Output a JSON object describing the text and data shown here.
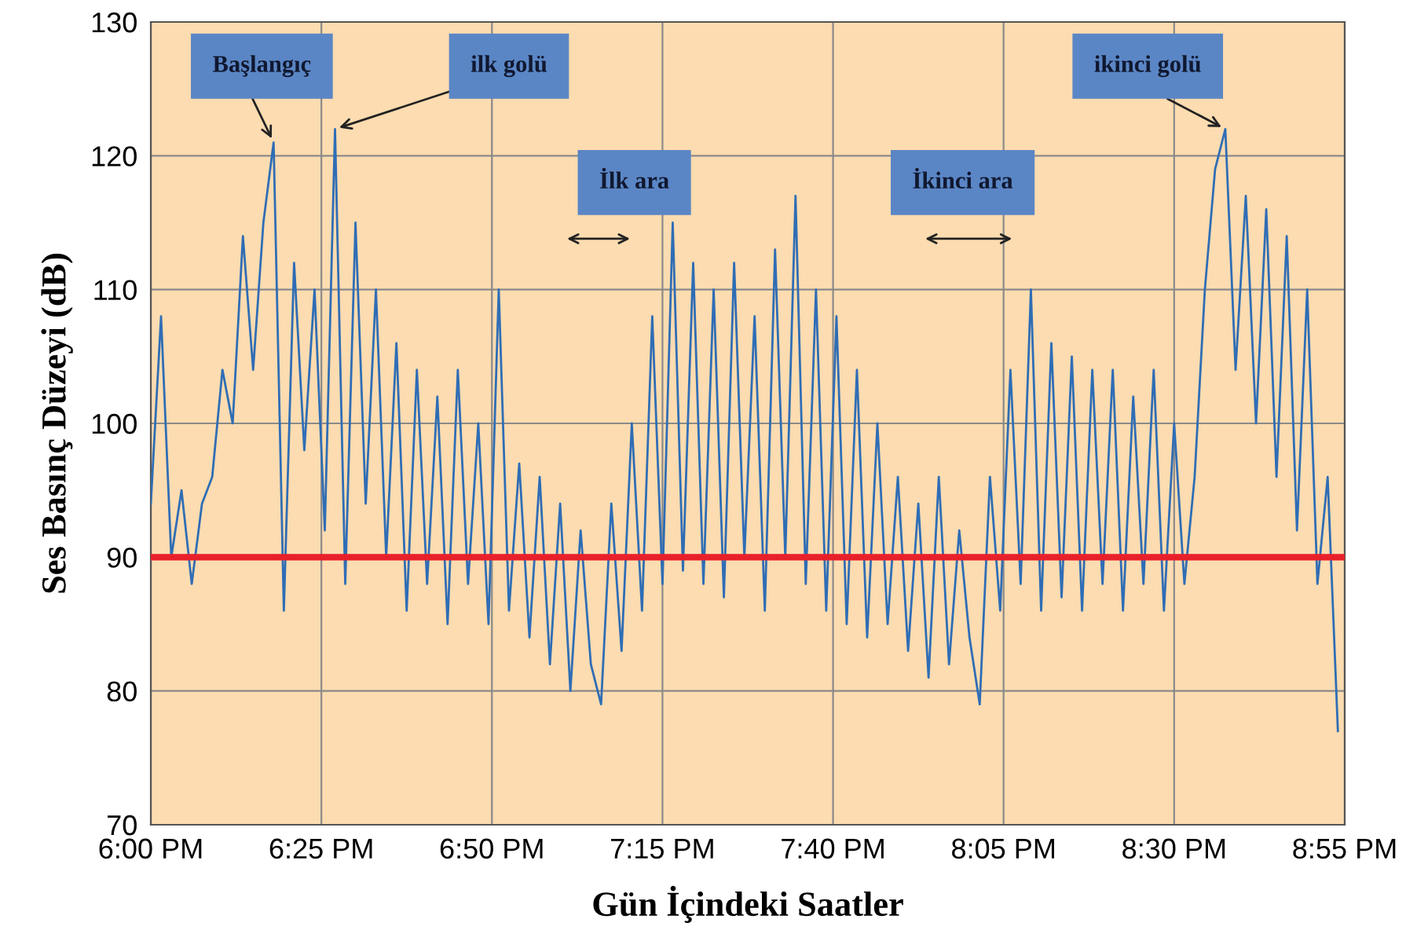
{
  "chart_data": {
    "type": "line",
    "xlabel": "Gün İçindeki Saatler",
    "ylabel": "Ses Basınç Düzeyi (dB)",
    "x": [
      18.0,
      18.025,
      18.05,
      18.075,
      18.1,
      18.125,
      18.15,
      18.175,
      18.2,
      18.225,
      18.25,
      18.275,
      18.3,
      18.325,
      18.35,
      18.375,
      18.4,
      18.425,
      18.45,
      18.475,
      18.5,
      18.525,
      18.55,
      18.575,
      18.6,
      18.625,
      18.65,
      18.675,
      18.7,
      18.725,
      18.75,
      18.775,
      18.8,
      18.825,
      18.85,
      18.875,
      18.9,
      18.925,
      18.95,
      18.975,
      19.0,
      19.025,
      19.05,
      19.075,
      19.1,
      19.125,
      19.15,
      19.175,
      19.2,
      19.225,
      19.25,
      19.275,
      19.3,
      19.325,
      19.35,
      19.375,
      19.4,
      19.425,
      19.45,
      19.475,
      19.5,
      19.525,
      19.55,
      19.575,
      19.6,
      19.625,
      19.65,
      19.675,
      19.7,
      19.725,
      19.75,
      19.775,
      19.8,
      19.825,
      19.85,
      19.875,
      19.9,
      19.925,
      19.95,
      19.975,
      20.0,
      20.025,
      20.05,
      20.075,
      20.1,
      20.125,
      20.15,
      20.175,
      20.2,
      20.225,
      20.25,
      20.275,
      20.3,
      20.325,
      20.35,
      20.375,
      20.4,
      20.425,
      20.45,
      20.475,
      20.5,
      20.525,
      20.55,
      20.575,
      20.6,
      20.625,
      20.65,
      20.675,
      20.7,
      20.725,
      20.75,
      20.775,
      20.8,
      20.825,
      20.85,
      20.875,
      20.9
    ],
    "series": [
      {
        "color": "#2f6db5",
        "values": [
          94,
          108,
          90,
          95,
          88,
          94,
          96,
          104,
          100,
          114,
          104,
          115,
          121,
          86,
          112,
          98,
          110,
          92,
          122,
          88,
          115,
          94,
          110,
          90,
          106,
          86,
          104,
          88,
          102,
          85,
          104,
          88,
          100,
          85,
          110,
          86,
          97,
          84,
          96,
          82,
          94,
          80,
          92,
          82,
          79,
          94,
          83,
          100,
          86,
          108,
          88,
          115,
          89,
          112,
          88,
          110,
          87,
          112,
          90,
          108,
          86,
          113,
          90,
          117,
          88,
          110,
          86,
          108,
          85,
          104,
          84,
          100,
          85,
          96,
          83,
          94,
          81,
          96,
          82,
          92,
          84,
          79,
          96,
          86,
          104,
          88,
          110,
          86,
          106,
          87,
          105,
          86,
          104,
          88,
          104,
          86,
          102,
          88,
          104,
          86,
          100,
          88,
          96,
          110,
          119,
          122,
          104,
          117,
          100,
          116,
          96,
          114,
          92,
          110,
          88,
          96,
          77
        ]
      }
    ],
    "xlim": [
      18.0,
      20.9167
    ],
    "xticks": [
      {
        "value": 18.0,
        "label": "6:00 PM"
      },
      {
        "value": 18.4167,
        "label": "6:25 PM"
      },
      {
        "value": 18.8333,
        "label": "6:50 PM"
      },
      {
        "value": 19.25,
        "label": "7:15 PM"
      },
      {
        "value": 19.6667,
        "label": "7:40 PM"
      },
      {
        "value": 20.0833,
        "label": "8:05 PM"
      },
      {
        "value": 20.5,
        "label": "8:30 PM"
      },
      {
        "value": 20.9167,
        "label": "8:55 PM"
      }
    ],
    "ylim": [
      70,
      130
    ],
    "yticks": [
      70,
      80,
      90,
      100,
      110,
      120,
      130
    ],
    "grid": true,
    "ref_lines": [
      {
        "axis": "y",
        "value": 90,
        "color": "#e8202a"
      }
    ],
    "annotations": [
      {
        "text": "Başlangıç",
        "x": 18.3,
        "y": 121
      },
      {
        "text": "ilk golü",
        "x": 18.45,
        "y": 122
      },
      "İlk ara",
      "İkinci ara",
      {
        "text": "ikinci golü",
        "x": 20.625,
        "y": 122
      }
    ]
  }
}
